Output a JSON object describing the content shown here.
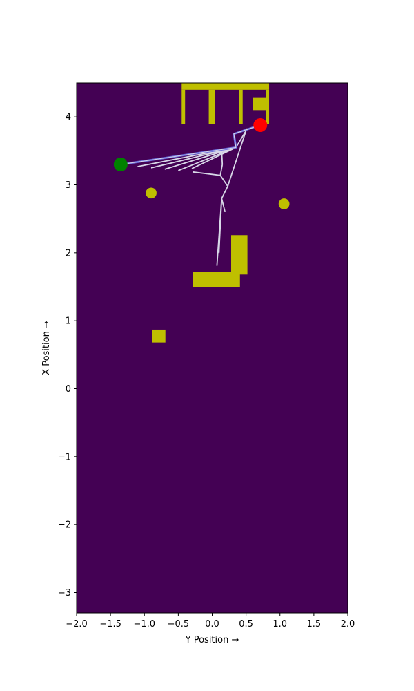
{
  "chart_data": {
    "type": "scatter",
    "title": "",
    "xlabel": "Y Position →",
    "ylabel": "X Position →",
    "xlim": [
      -2.0,
      2.0
    ],
    "ylim": [
      -3.3,
      4.5
    ],
    "xticks": [
      -2.0,
      -1.5,
      -1.0,
      -0.5,
      0.0,
      0.5,
      1.0,
      1.5,
      2.0
    ],
    "xtick_labels": [
      "−2.0",
      "−1.5",
      "−1.0",
      "−0.5",
      "0.0",
      "0.5",
      "1.0",
      "1.5",
      "2.0"
    ],
    "yticks": [
      -3,
      -2,
      -1,
      0,
      1,
      2,
      3,
      4
    ],
    "ytick_labels": [
      "−3",
      "−2",
      "−1",
      "0",
      "1",
      "2",
      "3",
      "4"
    ],
    "colors": {
      "background": "#440154",
      "obstacle": "#bfbf00",
      "start": "#008000",
      "goal": "#ff0000",
      "tree_edge": "#d8d8e8",
      "path": "#6a6ad8"
    },
    "obstacles": [
      {
        "x0": -0.45,
        "x1": 0.84,
        "y0": 4.4,
        "y1": 4.5
      },
      {
        "x0": -0.45,
        "x1": -0.4,
        "y0": 3.9,
        "y1": 4.4
      },
      {
        "x0": -0.05,
        "x1": 0.04,
        "y0": 3.9,
        "y1": 4.4
      },
      {
        "x0": 0.4,
        "x1": 0.45,
        "y0": 3.9,
        "y1": 4.4
      },
      {
        "x0": 0.6,
        "x1": 0.8,
        "y0": 4.1,
        "y1": 4.28
      },
      {
        "x0": 0.79,
        "x1": 0.84,
        "y0": 3.9,
        "y1": 4.4
      },
      {
        "x0": 0.28,
        "x1": 0.52,
        "y0": 1.68,
        "y1": 2.26
      },
      {
        "x0": -0.29,
        "x1": 0.41,
        "y0": 1.49,
        "y1": 1.72
      },
      {
        "x0": -0.89,
        "x1": -0.69,
        "y0": 0.68,
        "y1": 0.87
      }
    ],
    "circles": [
      {
        "x": -0.9,
        "y": 2.88,
        "r": 0.08
      },
      {
        "x": 1.06,
        "y": 2.72,
        "r": 0.08
      }
    ],
    "start": {
      "x": -1.35,
      "y": 3.3
    },
    "goal": {
      "x": 0.71,
      "y": 3.88
    },
    "tree_edges": [
      [
        [
          0.52,
          3.83
        ],
        [
          0.35,
          3.55
        ]
      ],
      [
        [
          0.35,
          3.55
        ],
        [
          -1.35,
          3.3
        ]
      ],
      [
        [
          0.35,
          3.55
        ],
        [
          -1.1,
          3.27
        ]
      ],
      [
        [
          0.35,
          3.55
        ],
        [
          -0.9,
          3.25
        ]
      ],
      [
        [
          0.35,
          3.55
        ],
        [
          -0.7,
          3.23
        ]
      ],
      [
        [
          0.35,
          3.55
        ],
        [
          -0.5,
          3.21
        ]
      ],
      [
        [
          0.35,
          3.55
        ],
        [
          -0.3,
          3.24
        ]
      ],
      [
        [
          0.5,
          3.8
        ],
        [
          0.23,
          2.98
        ]
      ],
      [
        [
          0.14,
          3.5
        ],
        [
          0.15,
          3.3
        ]
      ],
      [
        [
          0.15,
          3.3
        ],
        [
          0.12,
          3.14
        ]
      ],
      [
        [
          -0.29,
          3.19
        ],
        [
          0.12,
          3.14
        ]
      ],
      [
        [
          0.12,
          3.14
        ],
        [
          0.23,
          2.98
        ]
      ],
      [
        [
          0.23,
          2.98
        ],
        [
          0.14,
          2.8
        ]
      ],
      [
        [
          0.14,
          2.8
        ],
        [
          0.19,
          2.6
        ]
      ],
      [
        [
          0.14,
          2.8
        ],
        [
          0.1,
          2.0
        ]
      ],
      [
        [
          0.14,
          2.8
        ],
        [
          0.07,
          1.81
        ]
      ]
    ],
    "path": [
      [
        0.71,
        3.88
      ],
      [
        0.32,
        3.75
      ],
      [
        0.35,
        3.55
      ],
      [
        -1.35,
        3.3
      ]
    ]
  }
}
